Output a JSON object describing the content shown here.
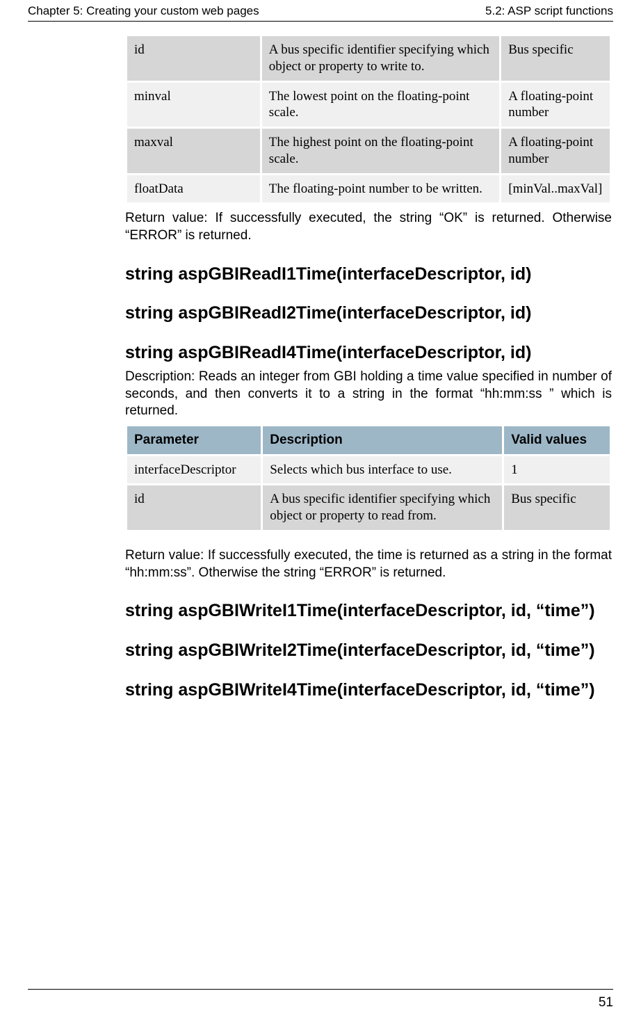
{
  "header": {
    "left": "Chapter 5: Creating your custom web pages",
    "right": "5.2: ASP script functions"
  },
  "table1": {
    "rows": [
      {
        "band": "dark",
        "param": "id",
        "desc": "A bus specific identifier specifying which object or property to write to.",
        "valid": "Bus specific"
      },
      {
        "band": "light",
        "param": "minval",
        "desc": "The lowest point on the floating-point scale.",
        "valid": "A floating-point number"
      },
      {
        "band": "dark",
        "param": "maxval",
        "desc": "The highest point on the floating-point scale.",
        "valid": "A floating-point number"
      },
      {
        "band": "light",
        "param": "floatData",
        "desc": "The floating-point number to be written.",
        "valid": "[minVal..maxVal]"
      }
    ]
  },
  "return1": "Return value: If successfully executed, the string “OK” is returned. Otherwise “ERROR” is returned.",
  "headings_read": [
    "string aspGBIReadI1Time(interfaceDescriptor, id)",
    "string aspGBIReadI2Time(interfaceDescriptor, id)",
    "string aspGBIReadI4Time(interfaceDescriptor, id)"
  ],
  "desc_read": "Description: Reads an integer from GBI holding a time value specified in number of seconds, and then converts it to a string in the format “hh:mm:ss ” which is returned.",
  "table2": {
    "headers": {
      "param": "Parameter",
      "desc": "Description",
      "valid": "Valid values"
    },
    "rows": [
      {
        "band": "light",
        "param": "interfaceDescriptor",
        "desc": "Selects which bus interface to use.",
        "valid": "1"
      },
      {
        "band": "dark",
        "param": "id",
        "desc": "A bus specific identifier specifying which object or property to read from.",
        "valid": "Bus specific"
      }
    ]
  },
  "return2": "Return value: If successfully executed, the time is returned as a string in the format “hh:mm:ss”. Otherwise the string “ERROR” is returned.",
  "headings_write": [
    "string aspGBIWriteI1Time(interfaceDescriptor, id, “time”)",
    "string aspGBIWriteI2Time(interfaceDescriptor, id, “time”)",
    "string aspGBIWriteI4Time(interfaceDescriptor, id, “time”)"
  ],
  "page_number": "51"
}
